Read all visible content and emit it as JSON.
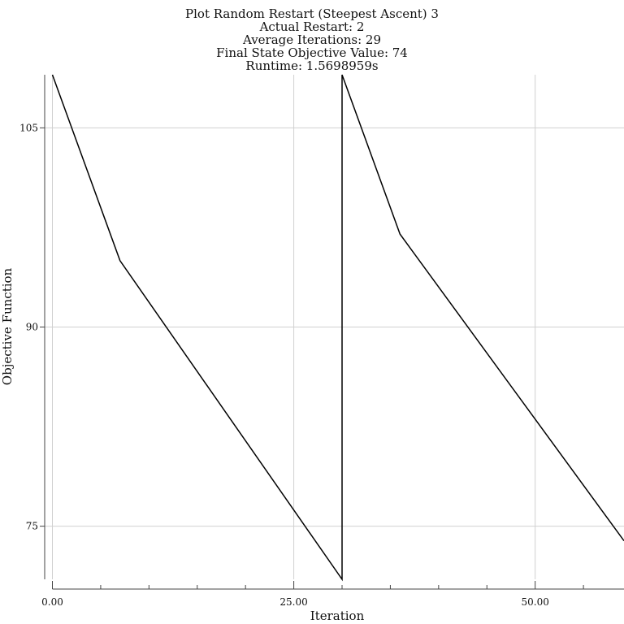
{
  "chart_data": {
    "type": "line",
    "title_lines": [
      "Plot Random Restart (Steepest Ascent) 3",
      "Actual Restart: 2",
      "Average Iterations: 29",
      "Final State Objective Value: 74",
      "Runtime: 1.5698959s"
    ],
    "xlabel": "Iteration",
    "ylabel": "Objective Function",
    "xlim": [
      -0.8,
      59.2
    ],
    "ylim": [
      71,
      109
    ],
    "x_ticks": [
      0,
      25,
      50
    ],
    "x_tick_labels": [
      "0.00",
      "25.00",
      "50.00"
    ],
    "x_minor_ticks": [
      0,
      5,
      10,
      15,
      20,
      25,
      30,
      35,
      40,
      45,
      50,
      55
    ],
    "y_ticks": [
      75,
      90,
      105
    ],
    "y_tick_labels": [
      "75",
      "90",
      "105"
    ],
    "grid": true,
    "series": [
      {
        "color": "#000000",
        "x": [
          0,
          7,
          30,
          30,
          36,
          59.2
        ],
        "y": [
          109,
          95,
          71,
          109,
          97,
          73.9
        ]
      }
    ]
  }
}
